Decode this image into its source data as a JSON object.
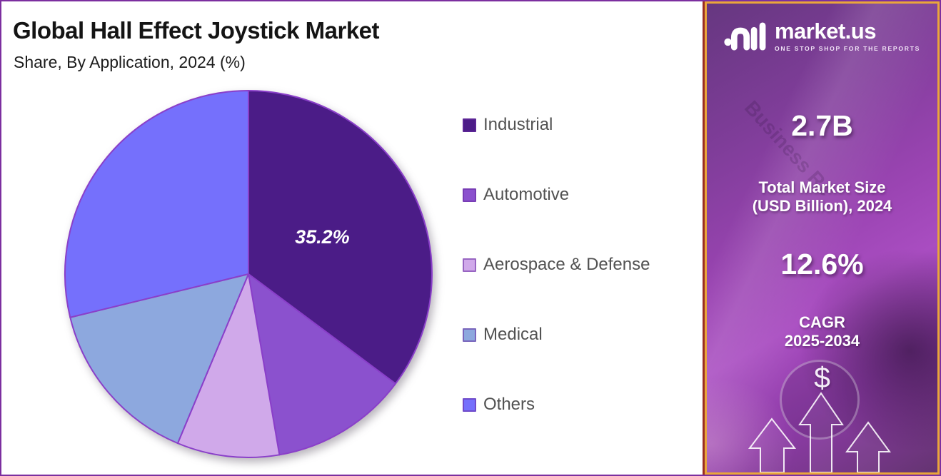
{
  "frame": {
    "border_color": "#7c2f9f",
    "background": "#ffffff"
  },
  "header": {
    "title": "Global Hall Effect Joystick Market",
    "subtitle": "Share, By Application, 2024 (%)"
  },
  "chart_data": {
    "type": "pie",
    "title": "Global Hall Effect Joystick Market Share, By Application, 2024 (%)",
    "unit": "% market share",
    "start_angle_deg": 0,
    "direction": "clockwise",
    "legend_position": "right",
    "stroke_color": "#8a3fc9",
    "labeled_slice": {
      "name": "Industrial",
      "label": "35.2%"
    },
    "note": "Only the Industrial slice (35.2%) carries a data label; remaining slice values are estimated from arc angles.",
    "slices": [
      {
        "label": "Industrial",
        "value": 35.2,
        "color": "#4b1c87"
      },
      {
        "label": "Automotive",
        "value": 12.1,
        "color": "#8b51ce"
      },
      {
        "label": "Aerospace & Defense",
        "value": 9.0,
        "color": "#d0a9ea"
      },
      {
        "label": "Medical",
        "value": 14.9,
        "color": "#8da8de"
      },
      {
        "label": "Others",
        "value": 28.8,
        "color": "#7570fc"
      }
    ]
  },
  "sidebar": {
    "logo": {
      "brand": "market.us",
      "tagline": "ONE STOP SHOP FOR THE REPORTS"
    },
    "stats": {
      "market_size_value": "2.7B",
      "market_size_label_line1": "Total Market Size",
      "market_size_label_line2": "(USD Billion), 2024",
      "cagr_value": "12.6%",
      "cagr_label_line1": "CAGR",
      "cagr_label_line2": "2025-2034",
      "currency_symbol": "$"
    },
    "photo_watermark": "Business Re",
    "colors": {
      "border_gold": "#eaa63a",
      "accent_red": "#9a2d23",
      "gradient_top": "#663780",
      "gradient_mid": "#a94dc1",
      "gradient_bottom": "#643471"
    }
  }
}
